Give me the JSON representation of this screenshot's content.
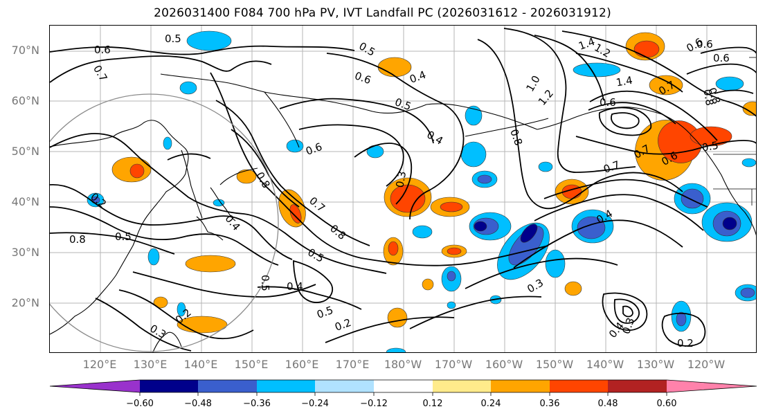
{
  "title": "2026031400 F084 700 hPa PV, IVT Landfall PC (2026031612 - 2026031912)",
  "lat_labels": [
    "70°N",
    "60°N",
    "50°N",
    "40°N",
    "30°N",
    "20°N"
  ],
  "lon_labels": [
    "120°E",
    "130°E",
    "140°E",
    "150°E",
    "160°E",
    "170°E",
    "180°W",
    "170°W",
    "160°W",
    "150°W",
    "140°W",
    "130°W",
    "120°W"
  ],
  "colorbar": {
    "ticks": [
      "−0.60",
      "−0.48",
      "−0.36",
      "−0.24",
      "−0.12",
      "0.12",
      "0.24",
      "0.36",
      "0.48",
      "0.60"
    ],
    "colors": [
      "#9932cc",
      "#00008b",
      "#3a5fcd",
      "#00bfff",
      "#b0e2ff",
      "#ffffff",
      "#ffeb8b",
      "#ffa500",
      "#ff4500",
      "#b22222",
      "#ff82ab"
    ]
  },
  "map": {
    "extent": {
      "lon": [
        110,
        250
      ],
      "lat": [
        10,
        75
      ]
    },
    "projection": "plate carree",
    "gridlines": true,
    "highlight_circle": true,
    "contour_labels": [
      "0.6",
      "0.5",
      "0.7",
      "0.5",
      "0.6",
      "0.4",
      "0.5",
      "0.4",
      "0.6",
      "0.3",
      "0.8",
      "0.4",
      "0.7",
      "0.8",
      "0.5",
      "0.4",
      "0.5",
      "0.5",
      "0.2",
      "0.2",
      "0.3",
      "0.2",
      "0.8",
      "0.5",
      "1.4",
      "1.2",
      "1.0",
      "1.2",
      "0.8",
      "0.6",
      "1.4",
      "0.7",
      "0.6",
      "0.8",
      "0.7",
      "0.6",
      "0.5",
      "0.7",
      "0.4",
      "0.3",
      "0.4",
      "0.3",
      "0.2",
      "0.8",
      "0.6",
      "0.6"
    ]
  }
}
